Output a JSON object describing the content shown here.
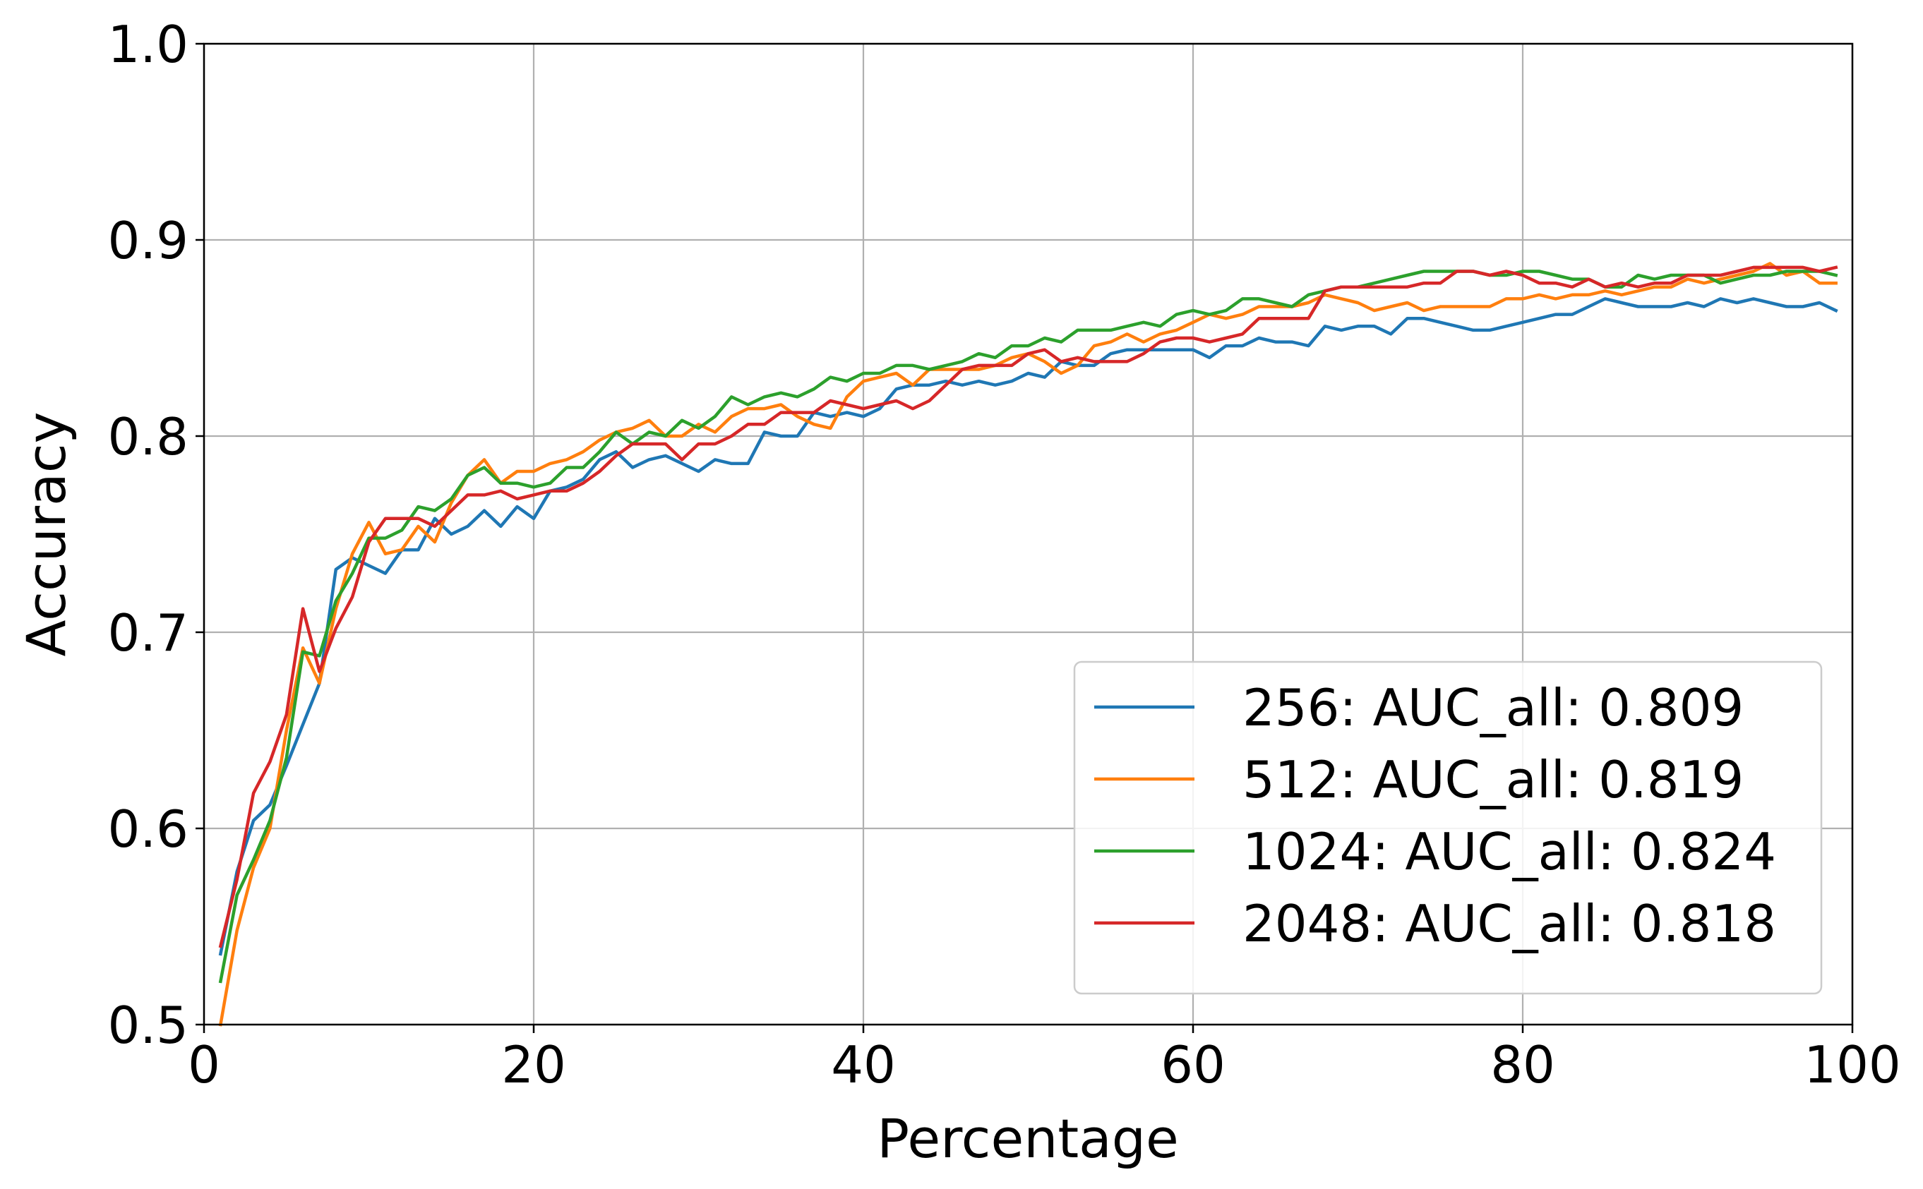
{
  "chart_data": {
    "type": "line",
    "title": "",
    "xlabel": "Percentage",
    "ylabel": "Accuracy",
    "xlim": [
      0,
      100
    ],
    "ylim": [
      0.5,
      1.0
    ],
    "xticks": [
      0,
      20,
      40,
      60,
      80,
      100
    ],
    "xtick_labels": [
      "0",
      "20",
      "40",
      "60",
      "80",
      "100"
    ],
    "yticks": [
      0.5,
      0.6,
      0.7,
      0.8,
      0.9,
      1.0
    ],
    "ytick_labels": [
      "0.5",
      "0.6",
      "0.7",
      "0.8",
      "0.9",
      "1.0"
    ],
    "grid": true,
    "legend_position": "lower-right",
    "x": [
      1,
      2,
      3,
      4,
      5,
      6,
      7,
      8,
      9,
      10,
      11,
      12,
      13,
      14,
      15,
      16,
      17,
      18,
      19,
      20,
      21,
      22,
      23,
      24,
      25,
      26,
      27,
      28,
      29,
      30,
      31,
      32,
      33,
      34,
      35,
      36,
      37,
      38,
      39,
      40,
      41,
      42,
      43,
      44,
      45,
      46,
      47,
      48,
      49,
      50,
      51,
      52,
      53,
      54,
      55,
      56,
      57,
      58,
      59,
      60,
      61,
      62,
      63,
      64,
      65,
      66,
      67,
      68,
      69,
      70,
      71,
      72,
      73,
      74,
      75,
      76,
      77,
      78,
      79,
      80,
      81,
      82,
      83,
      84,
      85,
      86,
      87,
      88,
      89,
      90,
      91,
      92,
      93,
      94,
      95,
      96,
      97,
      98,
      99
    ],
    "series": [
      {
        "name": "256: AUC_all: 0.809",
        "color": "#1f77b4",
        "values": [
          0.536,
          0.578,
          0.604,
          0.612,
          0.632,
          0.653,
          0.674,
          0.732,
          0.738,
          0.734,
          0.73,
          0.742,
          0.742,
          0.758,
          0.75,
          0.754,
          0.762,
          0.754,
          0.764,
          0.758,
          0.772,
          0.774,
          0.778,
          0.788,
          0.792,
          0.784,
          0.788,
          0.79,
          0.786,
          0.782,
          0.788,
          0.786,
          0.786,
          0.802,
          0.8,
          0.8,
          0.812,
          0.81,
          0.812,
          0.81,
          0.814,
          0.824,
          0.826,
          0.826,
          0.828,
          0.826,
          0.828,
          0.826,
          0.828,
          0.832,
          0.83,
          0.838,
          0.836,
          0.836,
          0.842,
          0.844,
          0.844,
          0.844,
          0.844,
          0.844,
          0.84,
          0.846,
          0.846,
          0.85,
          0.848,
          0.848,
          0.846,
          0.856,
          0.854,
          0.856,
          0.856,
          0.852,
          0.86,
          0.86,
          0.858,
          0.856,
          0.854,
          0.854,
          0.856,
          0.858,
          0.86,
          0.862,
          0.862,
          0.866,
          0.87,
          0.868,
          0.866,
          0.866,
          0.866,
          0.868,
          0.866,
          0.87,
          0.868,
          0.87,
          0.868,
          0.866,
          0.866,
          0.868,
          0.864
        ]
      },
      {
        "name": "512: AUC_all: 0.819",
        "color": "#ff7f0e",
        "values": [
          0.5,
          0.548,
          0.58,
          0.6,
          0.65,
          0.692,
          0.674,
          0.712,
          0.74,
          0.756,
          0.74,
          0.742,
          0.754,
          0.746,
          0.766,
          0.78,
          0.788,
          0.776,
          0.782,
          0.782,
          0.786,
          0.788,
          0.792,
          0.798,
          0.802,
          0.804,
          0.808,
          0.8,
          0.8,
          0.806,
          0.802,
          0.81,
          0.814,
          0.814,
          0.816,
          0.81,
          0.806,
          0.804,
          0.82,
          0.828,
          0.83,
          0.832,
          0.826,
          0.834,
          0.834,
          0.834,
          0.834,
          0.836,
          0.84,
          0.842,
          0.838,
          0.832,
          0.836,
          0.846,
          0.848,
          0.852,
          0.848,
          0.852,
          0.854,
          0.858,
          0.862,
          0.86,
          0.862,
          0.866,
          0.866,
          0.866,
          0.868,
          0.872,
          0.87,
          0.868,
          0.864,
          0.866,
          0.868,
          0.864,
          0.866,
          0.866,
          0.866,
          0.866,
          0.87,
          0.87,
          0.872,
          0.87,
          0.872,
          0.872,
          0.874,
          0.872,
          0.874,
          0.876,
          0.876,
          0.88,
          0.878,
          0.88,
          0.882,
          0.884,
          0.888,
          0.882,
          0.884,
          0.878,
          0.878
        ]
      },
      {
        "name": "1024: AUC_all: 0.824",
        "color": "#2ca02c",
        "values": [
          0.522,
          0.566,
          0.584,
          0.604,
          0.636,
          0.69,
          0.688,
          0.716,
          0.73,
          0.748,
          0.748,
          0.752,
          0.764,
          0.762,
          0.768,
          0.78,
          0.784,
          0.776,
          0.776,
          0.774,
          0.776,
          0.784,
          0.784,
          0.792,
          0.802,
          0.796,
          0.802,
          0.8,
          0.808,
          0.804,
          0.81,
          0.82,
          0.816,
          0.82,
          0.822,
          0.82,
          0.824,
          0.83,
          0.828,
          0.832,
          0.832,
          0.836,
          0.836,
          0.834,
          0.836,
          0.838,
          0.842,
          0.84,
          0.846,
          0.846,
          0.85,
          0.848,
          0.854,
          0.854,
          0.854,
          0.856,
          0.858,
          0.856,
          0.862,
          0.864,
          0.862,
          0.864,
          0.87,
          0.87,
          0.868,
          0.866,
          0.872,
          0.874,
          0.876,
          0.876,
          0.878,
          0.88,
          0.882,
          0.884,
          0.884,
          0.884,
          0.884,
          0.882,
          0.882,
          0.884,
          0.884,
          0.882,
          0.88,
          0.88,
          0.876,
          0.876,
          0.882,
          0.88,
          0.882,
          0.882,
          0.882,
          0.878,
          0.88,
          0.882,
          0.882,
          0.884,
          0.884,
          0.884,
          0.882
        ]
      },
      {
        "name": "2048: AUC_all: 0.818",
        "color": "#d62728",
        "values": [
          0.54,
          0.574,
          0.618,
          0.634,
          0.658,
          0.712,
          0.68,
          0.702,
          0.718,
          0.746,
          0.758,
          0.758,
          0.758,
          0.754,
          0.762,
          0.77,
          0.77,
          0.772,
          0.768,
          0.77,
          0.772,
          0.772,
          0.776,
          0.782,
          0.79,
          0.796,
          0.796,
          0.796,
          0.788,
          0.796,
          0.796,
          0.8,
          0.806,
          0.806,
          0.812,
          0.812,
          0.812,
          0.818,
          0.816,
          0.814,
          0.816,
          0.818,
          0.814,
          0.818,
          0.826,
          0.834,
          0.836,
          0.836,
          0.836,
          0.842,
          0.844,
          0.838,
          0.84,
          0.838,
          0.838,
          0.838,
          0.842,
          0.848,
          0.85,
          0.85,
          0.848,
          0.85,
          0.852,
          0.86,
          0.86,
          0.86,
          0.86,
          0.874,
          0.876,
          0.876,
          0.876,
          0.876,
          0.876,
          0.878,
          0.878,
          0.884,
          0.884,
          0.882,
          0.884,
          0.882,
          0.878,
          0.878,
          0.876,
          0.88,
          0.876,
          0.878,
          0.876,
          0.878,
          0.878,
          0.882,
          0.882,
          0.882,
          0.884,
          0.886,
          0.886,
          0.886,
          0.886,
          0.884,
          0.886
        ]
      }
    ]
  }
}
